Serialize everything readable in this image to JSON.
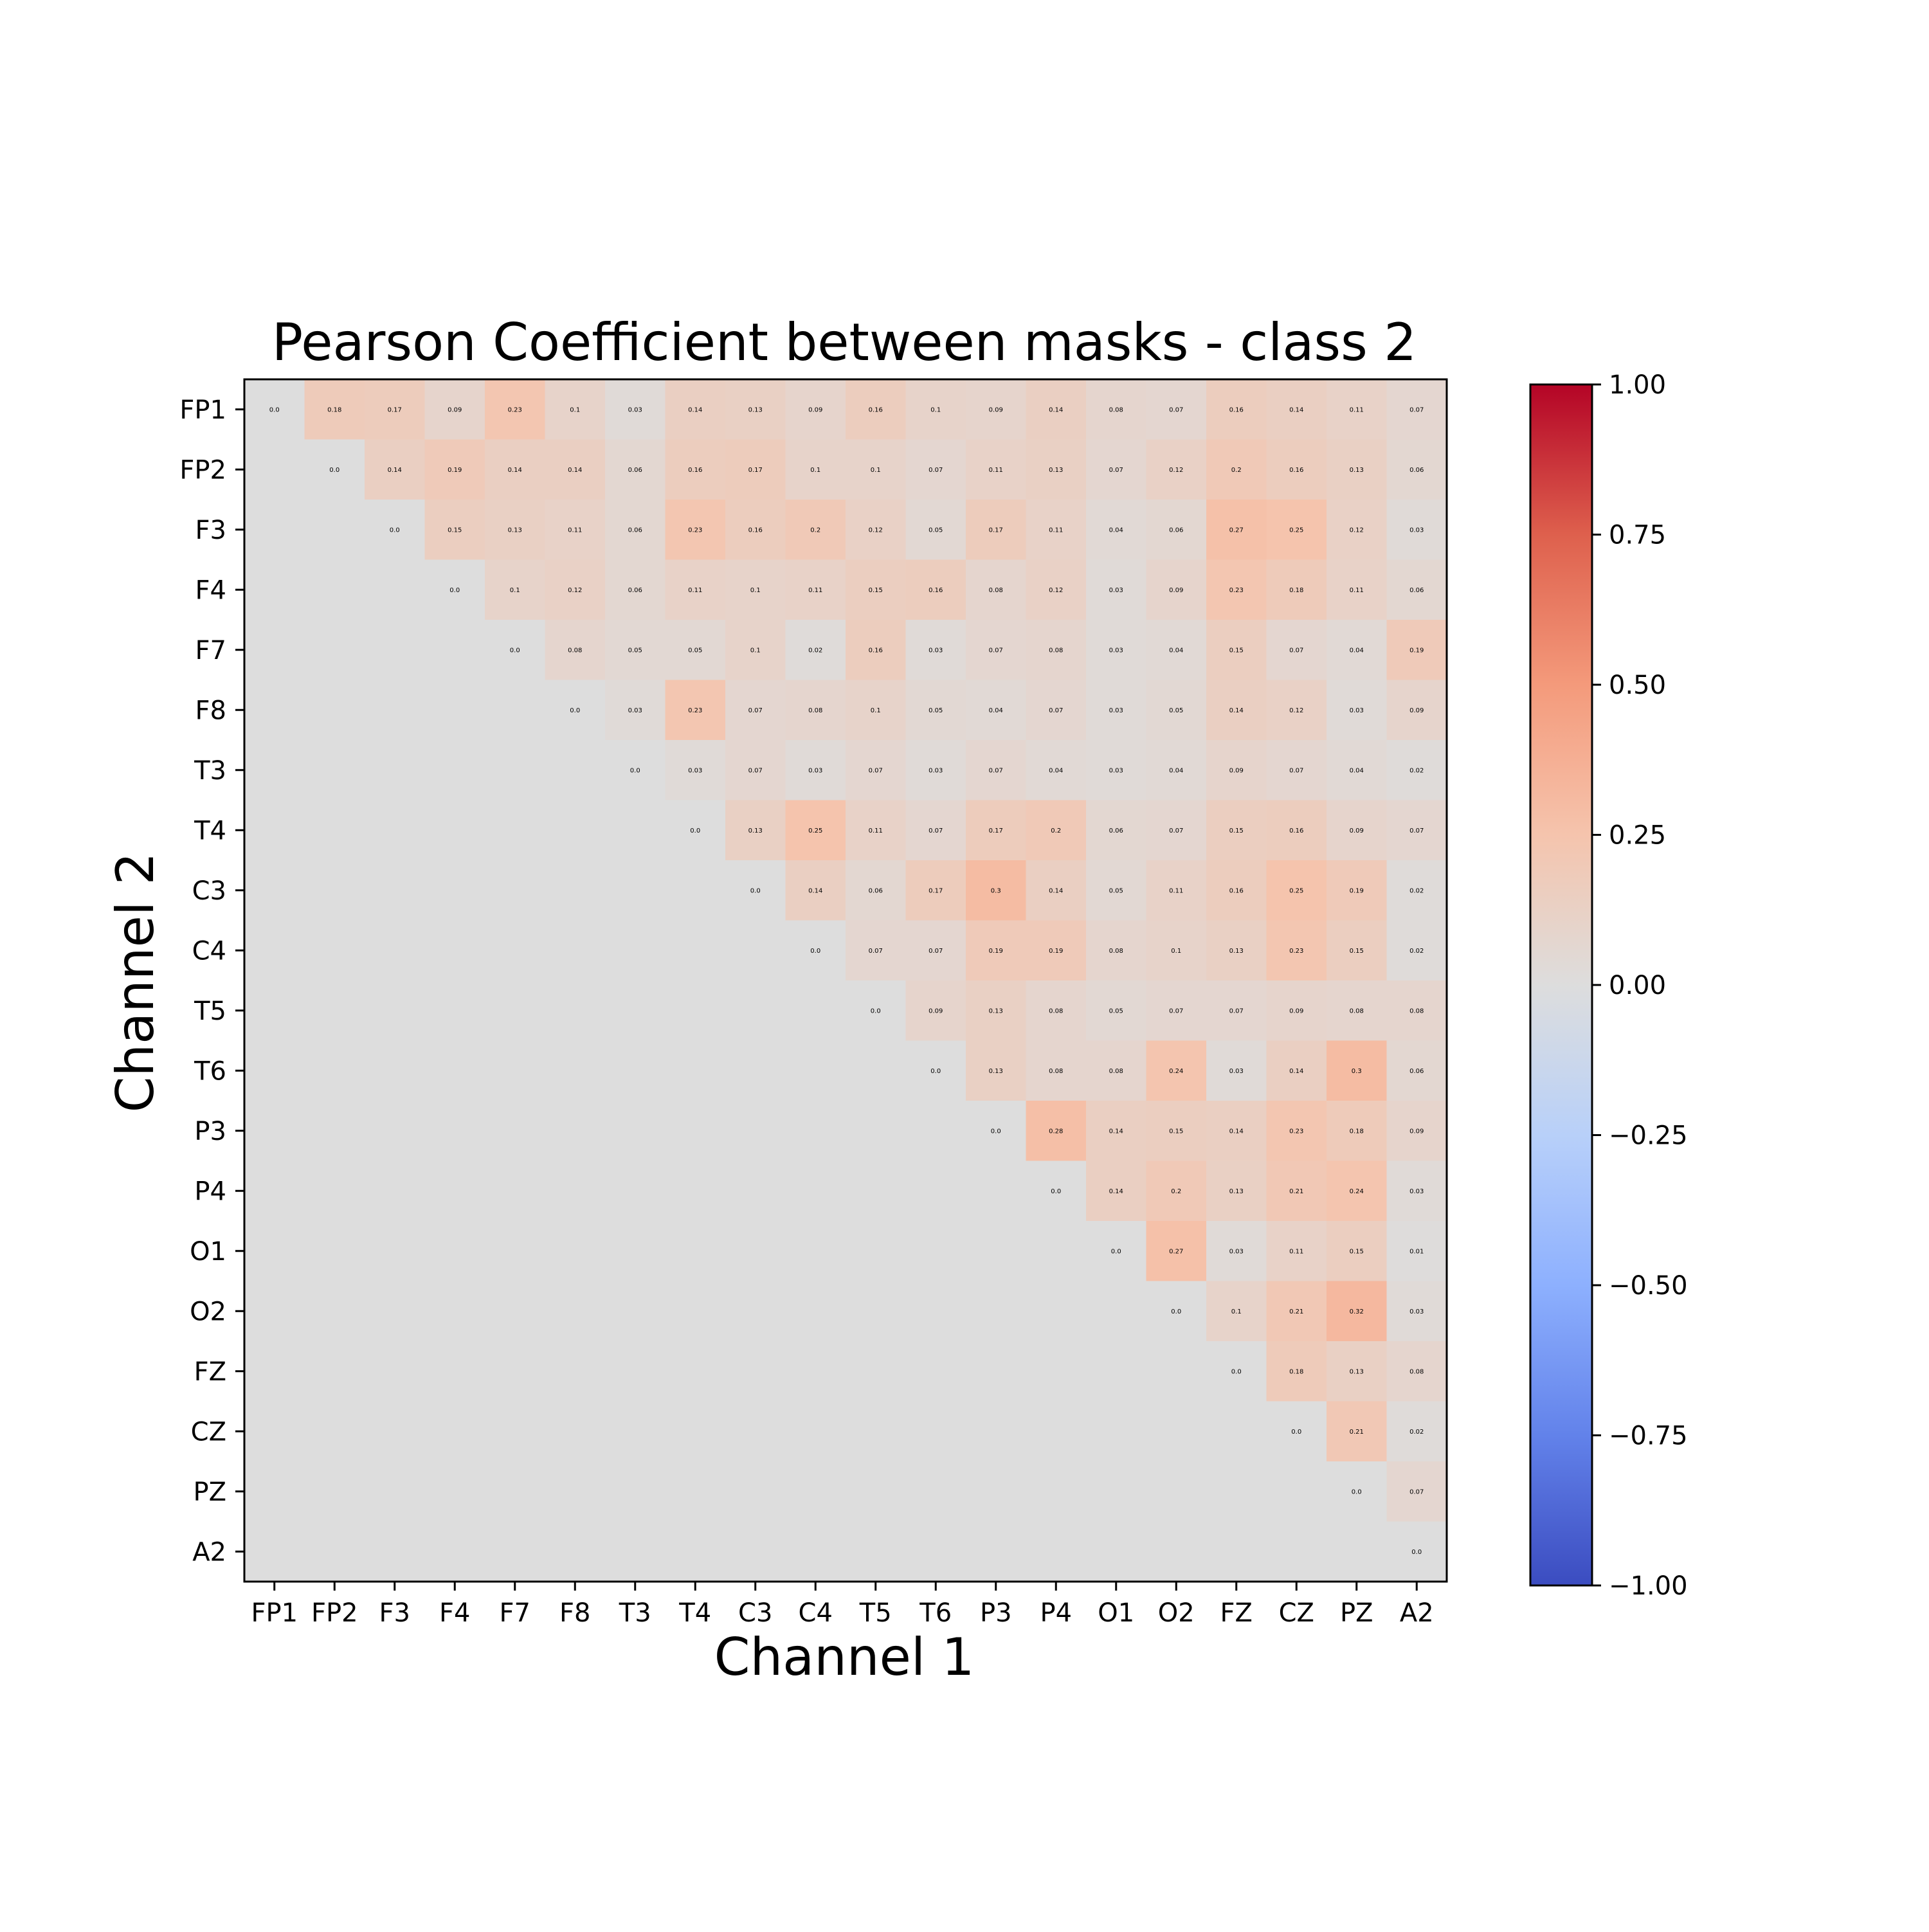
{
  "chart_data": {
    "type": "heatmap",
    "title": "Pearson Coefficient between masks - class 2",
    "xlabel": "Channel 1",
    "ylabel": "Channel 2",
    "x_categories": [
      "FP1",
      "FP2",
      "F3",
      "F4",
      "F7",
      "F8",
      "T3",
      "T4",
      "C3",
      "C4",
      "T5",
      "T6",
      "P3",
      "P4",
      "O1",
      "O2",
      "FZ",
      "CZ",
      "PZ",
      "A2"
    ],
    "y_categories": [
      "FP1",
      "FP2",
      "F3",
      "F4",
      "F7",
      "F8",
      "T3",
      "T4",
      "C3",
      "C4",
      "T5",
      "T6",
      "P3",
      "P4",
      "O1",
      "O2",
      "FZ",
      "CZ",
      "PZ",
      "A2"
    ],
    "matrix_shape": "upper-triangular",
    "values": [
      [
        0.0,
        0.18,
        0.17,
        0.09,
        0.23,
        0.1,
        0.03,
        0.14,
        0.13,
        0.09,
        0.16,
        0.1,
        0.09,
        0.14,
        0.08,
        0.07,
        0.16,
        0.14,
        0.11,
        0.07
      ],
      [
        0.0,
        0.14,
        0.19,
        0.14,
        0.14,
        0.06,
        0.16,
        0.17,
        0.1,
        0.1,
        0.07,
        0.11,
        0.13,
        0.07,
        0.12,
        0.2,
        0.16,
        0.13,
        0.06
      ],
      [
        0.0,
        0.15,
        0.13,
        0.11,
        0.06,
        0.23,
        0.16,
        0.2,
        0.12,
        0.05,
        0.17,
        0.11,
        0.04,
        0.06,
        0.27,
        0.25,
        0.12,
        0.03
      ],
      [
        0.0,
        0.1,
        0.12,
        0.06,
        0.11,
        0.1,
        0.11,
        0.15,
        0.16,
        0.08,
        0.12,
        0.03,
        0.09,
        0.23,
        0.18,
        0.11,
        0.06
      ],
      [
        0.0,
        0.08,
        0.05,
        0.05,
        0.1,
        0.02,
        0.16,
        0.03,
        0.07,
        0.08,
        0.03,
        0.04,
        0.15,
        0.07,
        0.04,
        0.19
      ],
      [
        0.0,
        0.03,
        0.23,
        0.07,
        0.08,
        0.1,
        0.05,
        0.04,
        0.07,
        0.03,
        0.05,
        0.14,
        0.12,
        0.03,
        0.09
      ],
      [
        0.0,
        0.03,
        0.07,
        0.03,
        0.07,
        0.03,
        0.07,
        0.04,
        0.03,
        0.04,
        0.09,
        0.07,
        0.04,
        0.02
      ],
      [
        0.0,
        0.13,
        0.25,
        0.11,
        0.07,
        0.17,
        0.2,
        0.06,
        0.07,
        0.15,
        0.16,
        0.09,
        0.07
      ],
      [
        0.0,
        0.14,
        0.06,
        0.17,
        0.3,
        0.14,
        0.05,
        0.11,
        0.16,
        0.25,
        0.19,
        0.02
      ],
      [
        0.0,
        0.07,
        0.07,
        0.19,
        0.19,
        0.08,
        0.1,
        0.13,
        0.23,
        0.15,
        0.02
      ],
      [
        0.0,
        0.09,
        0.13,
        0.08,
        0.05,
        0.07,
        0.07,
        0.09,
        0.08,
        0.08
      ],
      [
        0.0,
        0.13,
        0.08,
        0.08,
        0.24,
        0.03,
        0.14,
        0.3,
        0.06
      ],
      [
        0.0,
        0.28,
        0.14,
        0.15,
        0.14,
        0.23,
        0.18,
        0.09
      ],
      [
        0.0,
        0.14,
        0.2,
        0.13,
        0.21,
        0.24,
        0.03
      ],
      [
        0.0,
        0.27,
        0.03,
        0.11,
        0.15,
        0.01
      ],
      [
        0.0,
        0.1,
        0.21,
        0.32,
        0.03
      ],
      [
        0.0,
        0.18,
        0.13,
        0.08
      ],
      [
        0.0,
        0.21,
        0.02
      ],
      [
        0.0,
        0.07
      ],
      [
        0.0
      ]
    ],
    "value_labels": [
      [
        "0.0",
        "0.18",
        "0.17",
        "0.09",
        "0.23",
        "0.1",
        "0.03",
        "0.14",
        "0.13",
        "0.09",
        "0.16",
        "0.1",
        "0.09",
        "0.14",
        "0.08",
        "0.07",
        "0.16",
        "0.14",
        "0.11",
        "0.07"
      ],
      [
        "0.0",
        "0.14",
        "0.19",
        "0.14",
        "0.14",
        "0.06",
        "0.16",
        "0.17",
        "0.1",
        "0.1",
        "0.07",
        "0.11",
        "0.13",
        "0.07",
        "0.12",
        "0.2",
        "0.16",
        "0.13",
        "0.06"
      ],
      [
        "0.0",
        "0.15",
        "0.13",
        "0.11",
        "0.06",
        "0.23",
        "0.16",
        "0.2",
        "0.12",
        "0.05",
        "0.17",
        "0.11",
        "0.04",
        "0.06",
        "0.27",
        "0.25",
        "0.12",
        "0.03"
      ],
      [
        "0.0",
        "0.1",
        "0.12",
        "0.06",
        "0.11",
        "0.1",
        "0.11",
        "0.15",
        "0.16",
        "0.08",
        "0.12",
        "0.03",
        "0.09",
        "0.23",
        "0.18",
        "0.11",
        "0.06"
      ],
      [
        "0.0",
        "0.08",
        "0.05",
        "0.05",
        "0.1",
        "0.02",
        "0.16",
        "0.03",
        "0.07",
        "0.08",
        "0.03",
        "0.04",
        "0.15",
        "0.07",
        "0.04",
        "0.19"
      ],
      [
        "0.0",
        "0.03",
        "0.23",
        "0.07",
        "0.08",
        "0.1",
        "0.05",
        "0.04",
        "0.07",
        "0.03",
        "0.05",
        "0.14",
        "0.12",
        "0.03",
        "0.09"
      ],
      [
        "0.0",
        "0.03",
        "0.07",
        "0.03",
        "0.07",
        "0.03",
        "0.07",
        "0.04",
        "0.03",
        "0.04",
        "0.09",
        "0.07",
        "0.04",
        "0.02"
      ],
      [
        "0.0",
        "0.13",
        "0.25",
        "0.11",
        "0.07",
        "0.17",
        "0.2",
        "0.06",
        "0.07",
        "0.15",
        "0.16",
        "0.09",
        "0.07"
      ],
      [
        "0.0",
        "0.14",
        "0.06",
        "0.17",
        "0.3",
        "0.14",
        "0.05",
        "0.11",
        "0.16",
        "0.25",
        "0.19",
        "0.02"
      ],
      [
        "0.0",
        "0.07",
        "0.07",
        "0.19",
        "0.19",
        "0.08",
        "0.1",
        "0.13",
        "0.23",
        "0.15",
        "0.02"
      ],
      [
        "0.0",
        "0.09",
        "0.13",
        "0.08",
        "0.05",
        "0.07",
        "0.07",
        "0.09",
        "0.08",
        "0.08"
      ],
      [
        "0.0",
        "0.13",
        "0.08",
        "0.08",
        "0.24",
        "0.03",
        "0.14",
        "0.3",
        "0.06"
      ],
      [
        "0.0",
        "0.28",
        "0.14",
        "0.15",
        "0.14",
        "0.23",
        "0.18",
        "0.09"
      ],
      [
        "0.0",
        "0.14",
        "0.2",
        "0.13",
        "0.21",
        "0.24",
        "0.03"
      ],
      [
        "0.0",
        "0.27",
        "0.03",
        "0.11",
        "0.15",
        "0.01"
      ],
      [
        "0.0",
        "0.1",
        "0.21",
        "0.32",
        "0.03"
      ],
      [
        "0.0",
        "0.18",
        "0.13",
        "0.08"
      ],
      [
        "0.0",
        "0.21",
        "0.02"
      ],
      [
        "0.0",
        "0.07"
      ],
      [
        "0.0"
      ]
    ],
    "colormap": "coolwarm",
    "vmin": -1.0,
    "vmax": 1.0,
    "colorbar_ticks": [
      1.0,
      0.75,
      0.5,
      0.25,
      0.0,
      -0.25,
      -0.5,
      -0.75,
      -1.0
    ],
    "colorbar_tick_labels": [
      "1.00",
      "0.75",
      "0.50",
      "0.25",
      "0.00",
      "−0.25",
      "−0.50",
      "−0.75",
      "−1.00"
    ],
    "grid": false
  }
}
